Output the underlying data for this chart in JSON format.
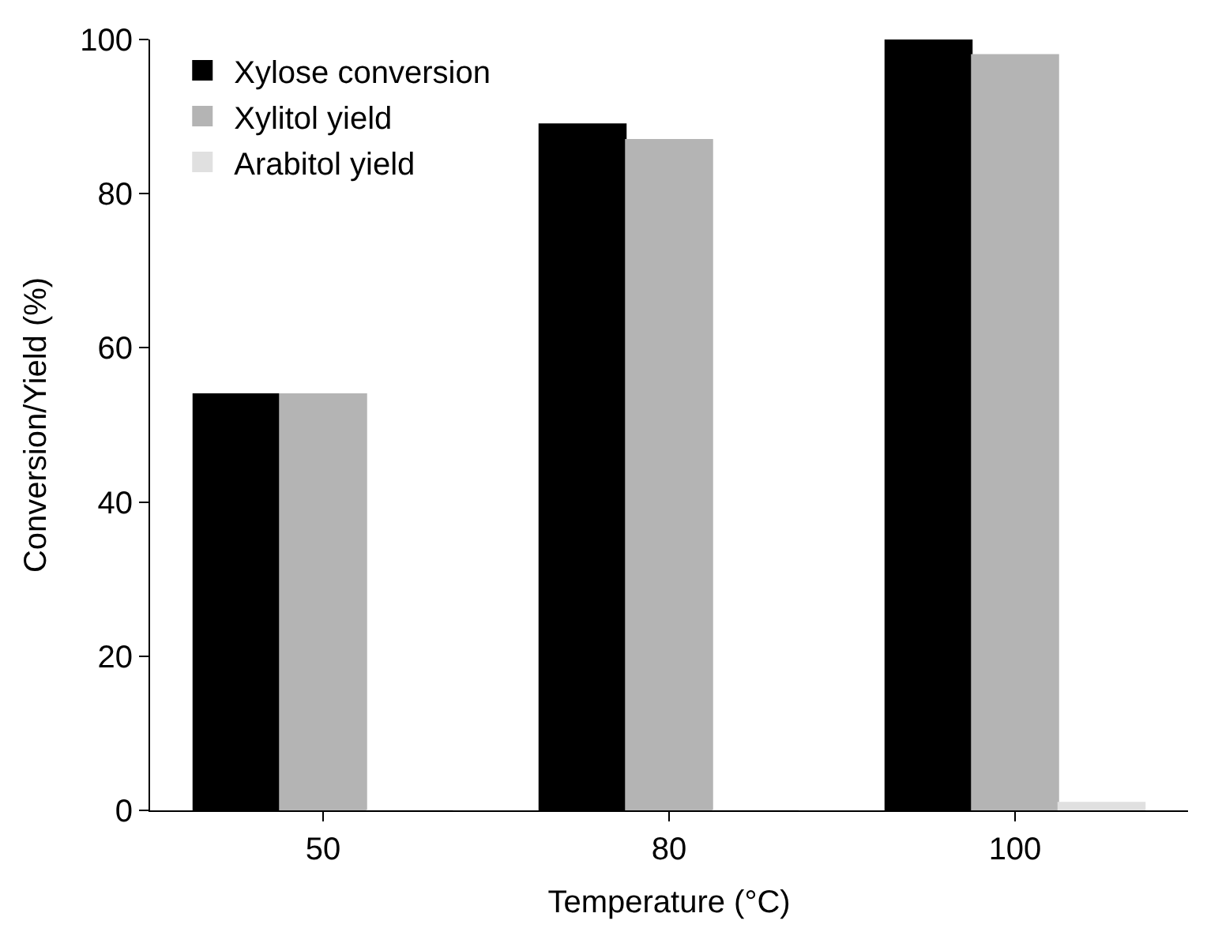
{
  "chart_data": {
    "type": "bar",
    "xlabel": "Temperature (°C)",
    "ylabel": "Conversion/Yield (%)",
    "categories": [
      "50",
      "80",
      "100"
    ],
    "series": [
      {
        "name": "Xylose conversion",
        "color": "#000000",
        "values": [
          54,
          89,
          100
        ]
      },
      {
        "name": "Xylitol yield",
        "color": "#b4b4b4",
        "values": [
          54,
          87,
          98
        ]
      },
      {
        "name": "Arabitol yield",
        "color": "#e0e0e0",
        "values": [
          0,
          0,
          1
        ]
      }
    ],
    "ylim": [
      0,
      100
    ],
    "yticks": [
      0,
      20,
      40,
      60,
      80,
      100
    ],
    "legend": "top left"
  }
}
